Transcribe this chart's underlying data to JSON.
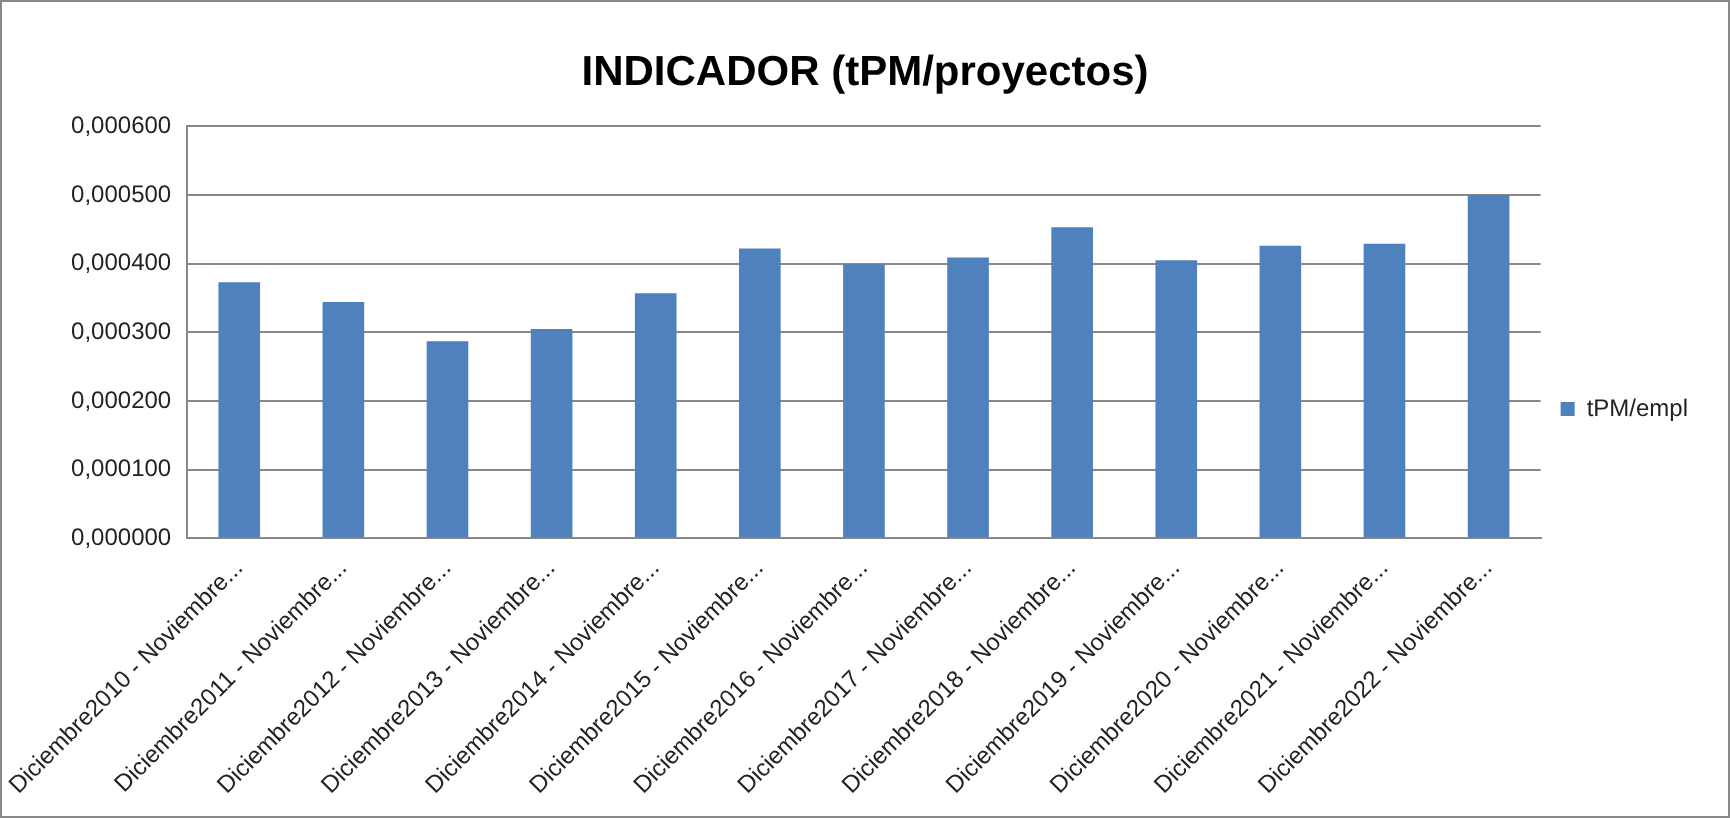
{
  "chart_data": {
    "type": "bar",
    "title": "INDICADOR (tPM/proyectos)",
    "categories": [
      "Diciembre2010 - Noviembre...",
      "Diciembre2011 - Noviembre...",
      "Diciembre2012 - Noviembre...",
      "Diciembre2013 - Noviembre...",
      "Diciembre2014 - Noviembre...",
      "Diciembre2015 - Noviembre...",
      "Diciembre2016 - Noviembre...",
      "Diciembre2017 - Noviembre...",
      "Diciembre2018 - Noviembre...",
      "Diciembre2019 - Noviembre...",
      "Diciembre2020 - Noviembre...",
      "Diciembre2021 - Noviembre...",
      "Diciembre2022 - Noviembre..."
    ],
    "series": [
      {
        "name": "tPM/empl",
        "color": "#4f81bd",
        "values": [
          0.000373,
          0.000344,
          0.000287,
          0.000305,
          0.000357,
          0.000422,
          0.000399,
          0.000409,
          0.000453,
          0.000405,
          0.000426,
          0.000429,
          0.0005
        ]
      }
    ],
    "ylim": [
      0,
      0.0006
    ],
    "yticks": [
      {
        "value": 0,
        "label": "0,000000"
      },
      {
        "value": 0.0001,
        "label": "0,000100"
      },
      {
        "value": 0.0002,
        "label": "0,000200"
      },
      {
        "value": 0.0003,
        "label": "0,000300"
      },
      {
        "value": 0.0004,
        "label": "0,000400"
      },
      {
        "value": 0.0005,
        "label": "0,000500"
      },
      {
        "value": 0.0006,
        "label": "0,000600"
      }
    ],
    "grid": "y",
    "legend": "right"
  }
}
